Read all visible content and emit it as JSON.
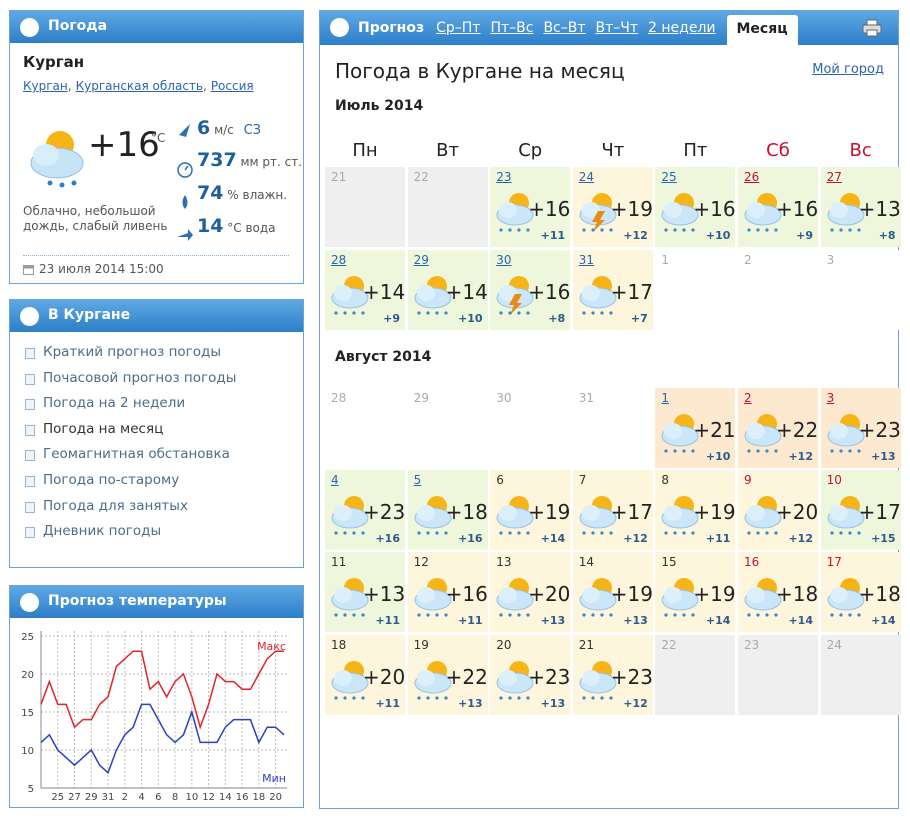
{
  "weather_panel": {
    "title": "Погода",
    "city": "Курган",
    "location_links": [
      "Курган",
      "Курганская область",
      "Россия"
    ],
    "separator": ",",
    "temperature": "+16",
    "temperature_unit": "°C",
    "wind_speed": "6",
    "wind_unit": "м/с",
    "wind_direction": "СЗ",
    "pressure": "737",
    "pressure_unit": "мм рт. ст.",
    "humidity": "74",
    "humidity_unit": "% влажн.",
    "water_temp": "14",
    "water_unit": "°C вода",
    "description": "Облачно, небольшой дождь, слабый ливень",
    "updated": "23 июля 2014 15:00"
  },
  "city_panel": {
    "title": "В Кургане",
    "links": [
      "Краткий прогноз погоды",
      "Почасовой прогноз погоды",
      "Погода на 2 недели",
      "Погода на месяц",
      "Геомагнитная обстановка",
      "Погода по-старому",
      "Погода для занятых",
      "Дневник погоды"
    ],
    "active": 3
  },
  "temperature_chart": {
    "type": "line",
    "title": "Прогноз температуры",
    "categories": [
      null,
      null,
      "25",
      null,
      "27",
      null,
      "29",
      null,
      "31",
      null,
      "2",
      null,
      "4",
      null,
      "6",
      null,
      "8",
      null,
      "10",
      null,
      "12",
      null,
      "14",
      null,
      "16",
      null,
      "18",
      null,
      "20",
      null
    ],
    "series": [
      {
        "name": "Макс",
        "color": "#e0242a",
        "values": [
          16,
          19,
          16,
          16,
          13,
          14,
          14,
          16,
          17,
          21,
          22,
          23,
          23,
          18,
          19,
          17,
          19,
          20,
          17,
          13,
          16,
          20,
          19,
          19,
          18,
          18,
          20,
          22,
          23,
          23
        ]
      },
      {
        "name": "Мин",
        "color": "#2b3fc4",
        "values": [
          11,
          12,
          10,
          9,
          8,
          9,
          10,
          8,
          7,
          10,
          12,
          13,
          16,
          16,
          14,
          12,
          11,
          12,
          15,
          11,
          11,
          11,
          13,
          14,
          14,
          14,
          11,
          13,
          13,
          12
        ]
      }
    ],
    "ylim": [
      5,
      25
    ],
    "yticks": [
      5,
      10,
      15,
      20,
      25
    ],
    "grid": true
  },
  "forecast": {
    "tabs_label": "Прогноз",
    "tabs": [
      "Ср–Пт",
      "Пт–Вс",
      "Вс–Вт",
      "Вт–Чт",
      "2 недели",
      "Месяц"
    ],
    "active_tab": 5,
    "title": "Погода в Кургане на месяц",
    "my_city": "Мой город",
    "weekdays": [
      "Пн",
      "Вт",
      "Ср",
      "Чт",
      "Пт",
      "Сб",
      "Вс"
    ],
    "weekend_from": 5,
    "months": [
      {
        "name": "Июль 2014",
        "weeks": [
          [
            {
              "day": 21,
              "past": true
            },
            {
              "day": 22,
              "past": true
            },
            {
              "day": 23,
              "link": true,
              "temp": "+16",
              "min": "+11",
              "icon": "rain",
              "tone": "green"
            },
            {
              "day": 24,
              "link": true,
              "temp": "+19",
              "min": "+12",
              "icon": "storm",
              "tone": "yellow"
            },
            {
              "day": 25,
              "link": true,
              "temp": "+16",
              "min": "+10",
              "icon": "rain",
              "tone": "green"
            },
            {
              "day": 26,
              "link": true,
              "temp": "+16",
              "min": "+9",
              "icon": "rain",
              "tone": "green"
            },
            {
              "day": 27,
              "link": true,
              "temp": "+13",
              "min": "+8",
              "icon": "rain",
              "tone": "green"
            }
          ],
          [
            {
              "day": 28,
              "link": true,
              "temp": "+14",
              "min": "+9",
              "icon": "rain",
              "tone": "green"
            },
            {
              "day": 29,
              "link": true,
              "temp": "+14",
              "min": "+10",
              "icon": "rain",
              "tone": "green"
            },
            {
              "day": 30,
              "link": true,
              "temp": "+16",
              "min": "+8",
              "icon": "storm",
              "tone": "green"
            },
            {
              "day": 31,
              "link": true,
              "temp": "+17",
              "min": "+7",
              "icon": "rain",
              "tone": "yellow"
            },
            {
              "day": 1
            },
            {
              "day": 2
            },
            {
              "day": 3
            }
          ]
        ]
      },
      {
        "name": "Август 2014",
        "weeks": [
          [
            {
              "day": 28
            },
            {
              "day": 29
            },
            {
              "day": 30
            },
            {
              "day": 31
            },
            {
              "day": 1,
              "link": true,
              "temp": "+21",
              "min": "+10",
              "icon": "rain",
              "tone": "orange"
            },
            {
              "day": 2,
              "link": true,
              "temp": "+22",
              "min": "+12",
              "icon": "rain",
              "tone": "orange"
            },
            {
              "day": 3,
              "link": true,
              "temp": "+23",
              "min": "+13",
              "icon": "rain",
              "tone": "orange"
            }
          ],
          [
            {
              "day": 4,
              "link": true,
              "temp": "+23",
              "min": "+16",
              "icon": "rain",
              "tone": "green"
            },
            {
              "day": 5,
              "link": true,
              "temp": "+18",
              "min": "+16",
              "icon": "rain",
              "tone": "green"
            },
            {
              "day": 6,
              "temp": "+19",
              "min": "+14",
              "icon": "rain",
              "tone": "yellow"
            },
            {
              "day": 7,
              "temp": "+17",
              "min": "+12",
              "icon": "rain",
              "tone": "yellow"
            },
            {
              "day": 8,
              "temp": "+19",
              "min": "+11",
              "icon": "rain",
              "tone": "yellow"
            },
            {
              "day": 9,
              "temp": "+20",
              "min": "+12",
              "icon": "rain",
              "tone": "yellow"
            },
            {
              "day": 10,
              "temp": "+17",
              "min": "+15",
              "icon": "rain",
              "tone": "green"
            }
          ],
          [
            {
              "day": 11,
              "temp": "+13",
              "min": "+11",
              "icon": "rain",
              "tone": "green"
            },
            {
              "day": 12,
              "temp": "+16",
              "min": "+11",
              "icon": "rain",
              "tone": "yellow"
            },
            {
              "day": 13,
              "temp": "+20",
              "min": "+13",
              "icon": "rain",
              "tone": "yellow"
            },
            {
              "day": 14,
              "temp": "+19",
              "min": "+13",
              "icon": "rain",
              "tone": "yellow"
            },
            {
              "day": 15,
              "temp": "+19",
              "min": "+14",
              "icon": "rain",
              "tone": "yellow"
            },
            {
              "day": 16,
              "temp": "+18",
              "min": "+14",
              "icon": "rain",
              "tone": "yellow"
            },
            {
              "day": 17,
              "temp": "+18",
              "min": "+14",
              "icon": "rain",
              "tone": "yellow"
            }
          ],
          [
            {
              "day": 18,
              "temp": "+20",
              "min": "+11",
              "icon": "rain",
              "tone": "yellow"
            },
            {
              "day": 19,
              "temp": "+22",
              "min": "+13",
              "icon": "rain",
              "tone": "yellow"
            },
            {
              "day": 20,
              "temp": "+23",
              "min": "+13",
              "icon": "rain",
              "tone": "yellow"
            },
            {
              "day": 21,
              "temp": "+23",
              "min": "+12",
              "icon": "rain",
              "tone": "yellow"
            },
            {
              "day": 22,
              "past": true
            },
            {
              "day": 23,
              "past": true
            },
            {
              "day": 24,
              "past": true
            }
          ]
        ]
      }
    ]
  }
}
